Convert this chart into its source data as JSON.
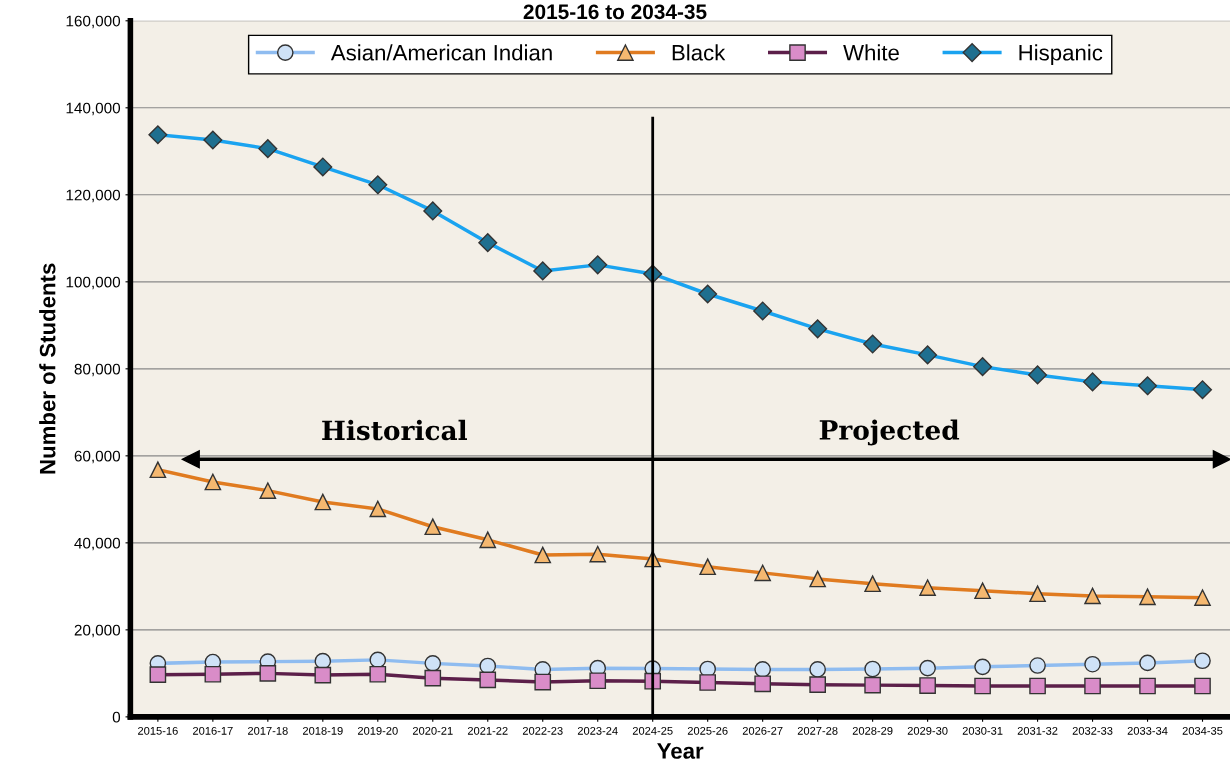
{
  "chart_data": {
    "type": "line",
    "title": "2015-16 to 2034-35",
    "xlabel": "Year",
    "ylabel": "Number of Students",
    "categories": [
      "2015-16",
      "2016-17",
      "2017-18",
      "2018-19",
      "2019-20",
      "2020-21",
      "2021-22",
      "2022-23",
      "2023-24",
      "2024-25",
      "2025-26",
      "2026-27",
      "2027-28",
      "2028-29",
      "2029-30",
      "2030-31",
      "2031-32",
      "2032-33",
      "2033-34",
      "2034-35"
    ],
    "series": [
      {
        "name": "Asian/American Indian",
        "color": "#8fbcf0",
        "marker": "circle",
        "values": [
          12300,
          12600,
          12700,
          12800,
          13100,
          12300,
          11700,
          10900,
          11200,
          11100,
          11000,
          10900,
          10900,
          11000,
          11200,
          11500,
          11800,
          12100,
          12400,
          12900
        ]
      },
      {
        "name": "Black",
        "color": "#e07b20",
        "marker": "triangle",
        "values": [
          56800,
          54000,
          52000,
          49400,
          47800,
          43700,
          40700,
          37200,
          37400,
          36300,
          34500,
          33100,
          31700,
          30600,
          29700,
          29000,
          28300,
          27800,
          27600,
          27400
        ]
      },
      {
        "name": "White",
        "color": "#5c1f4a",
        "marker": "square",
        "values": [
          9700,
          9800,
          10000,
          9600,
          9800,
          8900,
          8500,
          8000,
          8300,
          8200,
          7900,
          7600,
          7400,
          7300,
          7200,
          7100,
          7100,
          7100,
          7100,
          7100
        ]
      },
      {
        "name": "Hispanic",
        "color": "#1aa3f0",
        "marker": "diamond",
        "values": [
          133800,
          132600,
          130600,
          126400,
          122300,
          116300,
          109000,
          102500,
          103900,
          101800,
          97200,
          93300,
          89200,
          85700,
          83200,
          80500,
          78600,
          77000,
          76100,
          75200
        ]
      }
    ],
    "ylim": [
      0,
      160000
    ],
    "yticks": [
      {
        "value": 0,
        "label": "0"
      },
      {
        "value": 20000,
        "label": "20,000"
      },
      {
        "value": 40000,
        "label": "40,000"
      },
      {
        "value": 60000,
        "label": "60,000"
      },
      {
        "value": 80000,
        "label": "80,000"
      },
      {
        "value": 100000,
        "label": "100,000"
      },
      {
        "value": 120000,
        "label": "120,000"
      },
      {
        "value": 140000,
        "label": "140,000"
      },
      {
        "value": 160000,
        "label": "160,000"
      }
    ],
    "ref_lines": [
      {
        "axis": "x",
        "value": "2024-25",
        "color": "#000000"
      },
      {
        "axis": "y",
        "value": 59200,
        "color": "#000000"
      }
    ],
    "annotations": [
      "Historical",
      "Projected"
    ],
    "grid": "y",
    "legend": "top"
  }
}
